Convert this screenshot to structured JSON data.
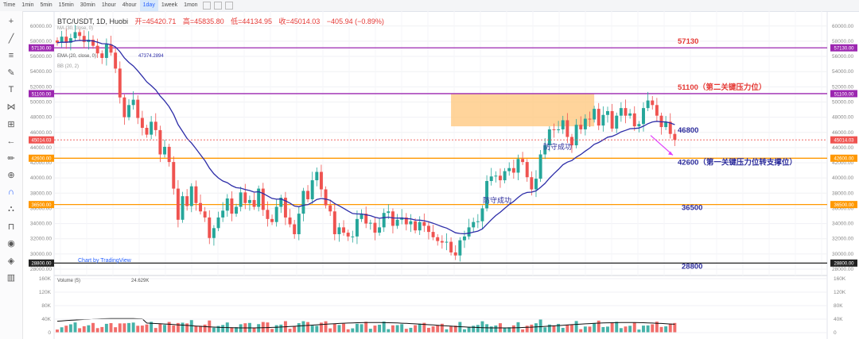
{
  "toolbar": {
    "timeframes": [
      "Time",
      "1min",
      "5min",
      "15min",
      "30min",
      "1hour",
      "4hour",
      "1day",
      "1week",
      "1mon"
    ],
    "active": "1day"
  },
  "left_tools": [
    "crosshair-icon",
    "trend-line-icon",
    "fib-icon",
    "brush-icon",
    "text-icon",
    "pattern-icon",
    "measure-icon",
    "back-arrow-icon",
    "ruler-icon",
    "zoom-in-icon",
    "magnet-icon",
    "lock-drawing-icon",
    "unlock-icon",
    "eye-icon",
    "layers-icon",
    "trash-icon"
  ],
  "header": {
    "symbol": "BTC/USDT, 1D, Huobi",
    "open": "开=45420.71",
    "high": "高=45835.80",
    "low": "低=44134.95",
    "close": "收=45014.03",
    "change": "−405.94 (−0.89%)"
  },
  "indicators": {
    "ma": "MA (30, close, 0)",
    "ema": "EMA (20, close, 0)",
    "ema_value": "47374.2894",
    "bb": "BB (20, 2)"
  },
  "watermark": "Chart by TradingView",
  "volume": {
    "label": "Volume (5)",
    "value": "24.629K"
  },
  "annotations": {
    "defense1": "防守成功",
    "defense2": "防守成功"
  },
  "colors": {
    "up": "#26a69a",
    "down": "#ef5350",
    "ema": "#2d2da8",
    "purple": "#9c27b0",
    "orange": "#ff9800",
    "box": "#ffc67a",
    "red_label": "#e53935",
    "blue_label": "#2d2d9c",
    "arrow": "#e040fb"
  },
  "chart_data": {
    "type": "candlestick",
    "ylim": [
      28000,
      60500
    ],
    "price_ticks": [
      60000,
      58000,
      56000,
      54000,
      52000,
      50000,
      48000,
      46000,
      44000,
      42000,
      40000,
      38000,
      36000,
      34000,
      32000,
      30000,
      28000
    ],
    "last_price": "45014.03",
    "levels": [
      {
        "value": 57130,
        "tag": "57130.00",
        "label": "57130",
        "color": "purple"
      },
      {
        "value": 51100,
        "tag": "51100.00",
        "label": "51100（第二关键压力位）",
        "color": "purple"
      },
      {
        "value": 46800,
        "tag": "",
        "label": "46800",
        "color": "none"
      },
      {
        "value": 42600,
        "tag": "42600.00",
        "label": "42600（第一关键压力位转支撑位）",
        "color": "orange"
      },
      {
        "value": 36500,
        "tag": "36500.00",
        "label": "36500",
        "color": "orange"
      },
      {
        "value": 28800,
        "tag": "28800.00",
        "label": "28800",
        "color": "black"
      }
    ],
    "resistance_box": {
      "start_index": 88,
      "end_index": 120,
      "low": 46800,
      "high": 51100
    },
    "volume_ticks": [
      "160K",
      "120K",
      "80K",
      "40K",
      "0"
    ],
    "volume_max": 160,
    "closes": [
      57800,
      58600,
      57800,
      58400,
      59200,
      58700,
      57900,
      58200,
      57400,
      56400,
      55800,
      57600,
      56500,
      54400,
      50600,
      48000,
      49600,
      50300,
      47900,
      46600,
      45700,
      47400,
      46300,
      43100,
      44100,
      42100,
      38600,
      34500,
      37600,
      36300,
      38900,
      36700,
      35600,
      34800,
      32100,
      33400,
      34800,
      35700,
      37300,
      35300,
      36200,
      38100,
      36700,
      37100,
      36200,
      38600,
      35800,
      34600,
      34200,
      36200,
      37400,
      34800,
      33900,
      32600,
      35300,
      38300,
      37200,
      39700,
      40800,
      38500,
      36400,
      35600,
      32600,
      33500,
      32800,
      32300,
      32300,
      34600,
      35300,
      34000,
      34100,
      32800,
      33500,
      35400,
      35600,
      33700,
      34500,
      34800,
      33900,
      34300,
      33100,
      34200,
      33700,
      32900,
      32200,
      31700,
      31500,
      31600,
      30200,
      29800,
      31800,
      32300,
      33500,
      34200,
      34300,
      36000,
      39600,
      40200,
      40300,
      39700,
      40900,
      41300,
      40700,
      42500,
      42100,
      40100,
      38500,
      39900,
      43100,
      44300,
      46400,
      46300,
      46400,
      47600,
      45400,
      44300,
      47000,
      46400,
      47800,
      47700,
      49100,
      46900,
      48300,
      48800,
      46500,
      48200,
      49200,
      48200,
      48500,
      46800,
      47100,
      49200,
      50200,
      49600,
      48200,
      46700,
      47400,
      45800,
      45000
    ],
    "volume_highlights": "bars colored by candle direction; black 5-period volume MA"
  }
}
